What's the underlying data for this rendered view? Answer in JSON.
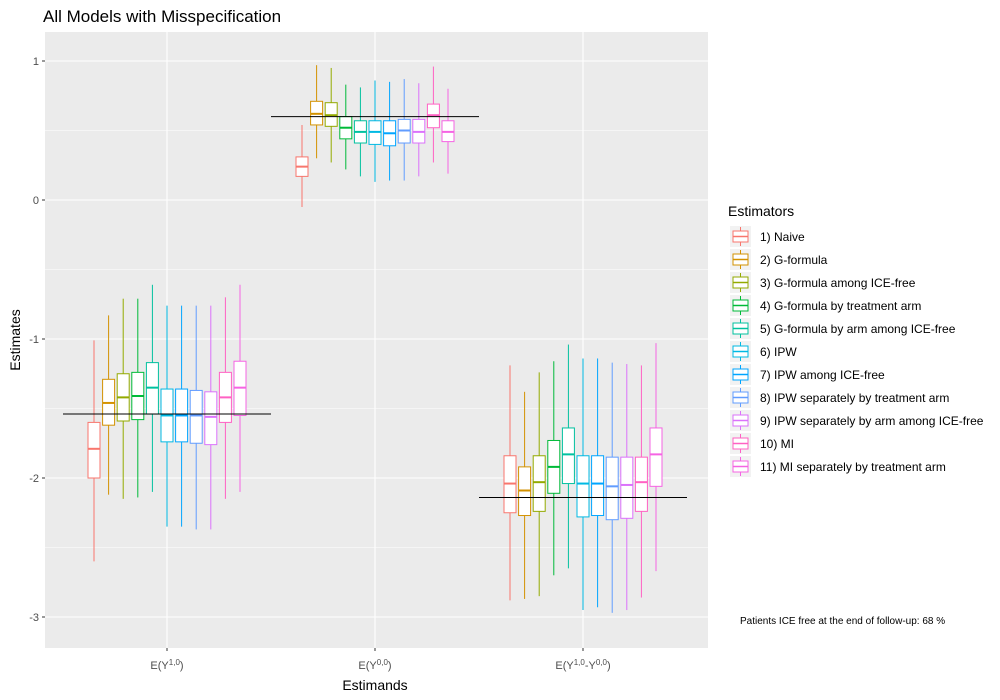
{
  "chart_data": {
    "type": "boxplot",
    "title": "All Models with Misspecification",
    "xlabel": "Estimands",
    "ylabel": "Estimates",
    "ylim": [
      -3.2,
      1.2
    ],
    "yticks": [
      1,
      0,
      -1,
      -2,
      -3
    ],
    "grid": true,
    "legend_title": "Estimators",
    "legend_position": "right",
    "note": "Patients ICE free at the end of follow-up: 68 %",
    "estimators": [
      {
        "name": "1) Naive",
        "color": "#F8766D"
      },
      {
        "name": "2) G-formula",
        "color": "#D39200"
      },
      {
        "name": "3) G-formula among ICE-free",
        "color": "#93AA00"
      },
      {
        "name": "4) G-formula by treatment arm",
        "color": "#00BA38"
      },
      {
        "name": "5) G-formula by arm among ICE-free",
        "color": "#00C19F"
      },
      {
        "name": "6) IPW",
        "color": "#00B9E3"
      },
      {
        "name": "7) IPW among ICE-free",
        "color": "#00A5FF"
      },
      {
        "name": "8) IPW separately by treatment arm",
        "color": "#619CFF"
      },
      {
        "name": "9) IPW separately by arm among ICE-free",
        "color": "#DB72FB"
      },
      {
        "name": "10) MI",
        "color": "#FF61C3"
      },
      {
        "name": "11) MI separately by treatment arm",
        "color": "#F564E3"
      }
    ],
    "categories": [
      {
        "label": "E(Y1,0)",
        "label_parts": {
          "base": "E(Y",
          "sup": "1,0",
          "close": ")"
        },
        "true_value": -1.54,
        "boxes": [
          {
            "min": -2.6,
            "q1": -2.0,
            "median": -1.79,
            "q3": -1.6,
            "max": -1.01
          },
          {
            "min": -2.12,
            "q1": -1.62,
            "median": -1.46,
            "q3": -1.29,
            "max": -0.83
          },
          {
            "min": -2.15,
            "q1": -1.59,
            "median": -1.42,
            "q3": -1.25,
            "max": -0.71
          },
          {
            "min": -2.14,
            "q1": -1.58,
            "median": -1.41,
            "q3": -1.24,
            "max": -0.71
          },
          {
            "min": -2.1,
            "q1": -1.54,
            "median": -1.35,
            "q3": -1.17,
            "max": -0.61
          },
          {
            "min": -2.35,
            "q1": -1.74,
            "median": -1.55,
            "q3": -1.36,
            "max": -0.76
          },
          {
            "min": -2.35,
            "q1": -1.74,
            "median": -1.55,
            "q3": -1.36,
            "max": -0.76
          },
          {
            "min": -2.37,
            "q1": -1.75,
            "median": -1.55,
            "q3": -1.37,
            "max": -0.76
          },
          {
            "min": -2.37,
            "q1": -1.76,
            "median": -1.56,
            "q3": -1.38,
            "max": -0.76
          },
          {
            "min": -2.15,
            "q1": -1.6,
            "median": -1.42,
            "q3": -1.24,
            "max": -0.7
          },
          {
            "min": -2.1,
            "q1": -1.55,
            "median": -1.35,
            "q3": -1.16,
            "max": -0.61
          }
        ]
      },
      {
        "label": "E(Y0,0)",
        "label_parts": {
          "base": "E(Y",
          "sup": "0,0",
          "close": ")"
        },
        "true_value": 0.6,
        "boxes": [
          {
            "min": -0.05,
            "q1": 0.17,
            "median": 0.24,
            "q3": 0.31,
            "max": 0.54
          },
          {
            "min": 0.3,
            "q1": 0.54,
            "median": 0.62,
            "q3": 0.71,
            "max": 0.97
          },
          {
            "min": 0.27,
            "q1": 0.53,
            "median": 0.61,
            "q3": 0.7,
            "max": 0.95
          },
          {
            "min": 0.22,
            "q1": 0.44,
            "median": 0.52,
            "q3": 0.6,
            "max": 0.83
          },
          {
            "min": 0.17,
            "q1": 0.41,
            "median": 0.49,
            "q3": 0.57,
            "max": 0.81
          },
          {
            "min": 0.13,
            "q1": 0.4,
            "median": 0.49,
            "q3": 0.57,
            "max": 0.86
          },
          {
            "min": 0.14,
            "q1": 0.39,
            "median": 0.48,
            "q3": 0.57,
            "max": 0.85
          },
          {
            "min": 0.14,
            "q1": 0.41,
            "median": 0.5,
            "q3": 0.58,
            "max": 0.87
          },
          {
            "min": 0.17,
            "q1": 0.41,
            "median": 0.49,
            "q3": 0.58,
            "max": 0.84
          },
          {
            "min": 0.27,
            "q1": 0.52,
            "median": 0.61,
            "q3": 0.69,
            "max": 0.96
          },
          {
            "min": 0.19,
            "q1": 0.42,
            "median": 0.49,
            "q3": 0.57,
            "max": 0.8
          }
        ]
      },
      {
        "label": "E(Y1,0-Y0,0)",
        "label_parts": {
          "base": "E(Y",
          "sup": "1,0",
          "mid": "-Y",
          "sup2": "0,0",
          "close": ")"
        },
        "true_value": -2.14,
        "boxes": [
          {
            "min": -2.88,
            "q1": -2.25,
            "median": -2.04,
            "q3": -1.84,
            "max": -1.19
          },
          {
            "min": -2.87,
            "q1": -2.27,
            "median": -2.09,
            "q3": -1.92,
            "max": -1.38
          },
          {
            "min": -2.85,
            "q1": -2.24,
            "median": -2.03,
            "q3": -1.84,
            "max": -1.24
          },
          {
            "min": -2.7,
            "q1": -2.11,
            "median": -1.92,
            "q3": -1.73,
            "max": -1.16
          },
          {
            "min": -2.65,
            "q1": -2.04,
            "median": -1.83,
            "q3": -1.64,
            "max": -1.04
          },
          {
            "min": -2.95,
            "q1": -2.28,
            "median": -2.04,
            "q3": -1.84,
            "max": -1.14
          },
          {
            "min": -2.93,
            "q1": -2.27,
            "median": -2.04,
            "q3": -1.84,
            "max": -1.14
          },
          {
            "min": -2.97,
            "q1": -2.3,
            "median": -2.06,
            "q3": -1.85,
            "max": -1.17
          },
          {
            "min": -2.95,
            "q1": -2.29,
            "median": -2.05,
            "q3": -1.85,
            "max": -1.18
          },
          {
            "min": -2.86,
            "q1": -2.24,
            "median": -2.03,
            "q3": -1.85,
            "max": -1.19
          },
          {
            "min": -2.67,
            "q1": -2.06,
            "median": -1.83,
            "q3": -1.64,
            "max": -1.03
          }
        ]
      }
    ]
  }
}
